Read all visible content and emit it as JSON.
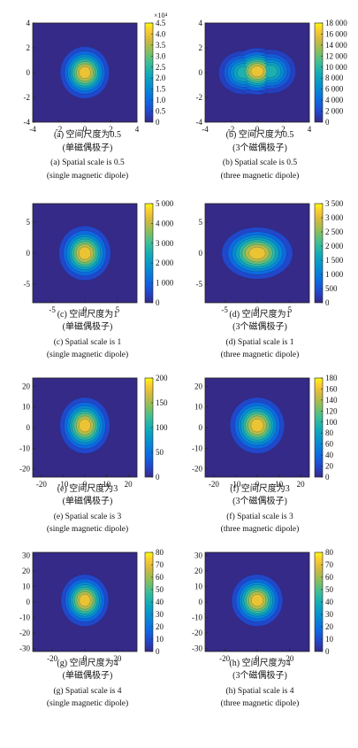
{
  "figure": {
    "panels": [
      {
        "id": "a",
        "caption_cn": "(a) 空间尺度为0.5",
        "caption_cn2": "(单磁偶极子)",
        "caption_en": "(a) Spatial scale is 0.5",
        "caption_en2": "(single magnetic dipole)",
        "chart_data": {
          "type": "heatmap",
          "colormap": "parula",
          "xlim": [
            -4,
            4
          ],
          "ylim": [
            -4,
            4
          ],
          "xticks": [
            "-4",
            "-2",
            "0",
            "2",
            "4"
          ],
          "yticks": [
            "4",
            "2",
            "0",
            "-2",
            "-4"
          ],
          "colorbar": {
            "min": 0,
            "max": 45000,
            "multiplier": "×10⁴",
            "ticks": [
              "4.5",
              "4.0",
              "3.5",
              "3.0",
              "2.5",
              "2.0",
              "1.5",
              "1.0",
              "0.5",
              "0"
            ]
          },
          "peak": {
            "x": 0,
            "y": 0,
            "value": 45000
          },
          "spread": {
            "sx": 0.9,
            "sy": 1.0
          },
          "contour_levels": 8
        }
      },
      {
        "id": "b",
        "caption_cn": "(b) 空间尺度为0.5",
        "caption_cn2": "(3个磁偶极子)",
        "caption_en": "(b) Spatial scale is 0.5",
        "caption_en2": "(three magnetic dipole)",
        "chart_data": {
          "type": "heatmap",
          "colormap": "parula",
          "xlim": [
            -4,
            4
          ],
          "ylim": [
            -4,
            4
          ],
          "xticks": [
            "-4",
            "-2",
            "0",
            "2",
            "4"
          ],
          "yticks": [
            "4",
            "2",
            "0",
            "-2",
            "-4"
          ],
          "colorbar": {
            "min": 0,
            "max": 18000,
            "multiplier": "",
            "ticks": [
              "18 000",
              "16 000",
              "14 000",
              "12 000",
              "10 000",
              "8 000",
              "6 000",
              "4 000",
              "2 000",
              "0"
            ]
          },
          "peaks": [
            {
              "x": -1.0,
              "y": 0,
              "value": 14000
            },
            {
              "x": 0.0,
              "y": 0.1,
              "value": 18000
            },
            {
              "x": 1.0,
              "y": 0.1,
              "value": 14000
            }
          ],
          "spread": {
            "sx": 1.0,
            "sy": 0.9
          },
          "contour_levels": 8
        }
      },
      {
        "id": "c",
        "caption_cn": "(c) 空间尺度为1",
        "caption_cn2": "(单磁偶极子)",
        "caption_en": "(c) Spatial scale is 1",
        "caption_en2": "(single magnetic dipole)",
        "chart_data": {
          "type": "heatmap",
          "colormap": "parula",
          "xlim": [
            -8,
            8
          ],
          "ylim": [
            -8,
            8
          ],
          "xticks": [
            "-5",
            "0",
            "5"
          ],
          "yticks": [
            "5",
            "0",
            "-5"
          ],
          "colorbar": {
            "min": 0,
            "max": 5500,
            "multiplier": "",
            "ticks": [
              "5 000",
              "4 000",
              "3 000",
              "2 000",
              "1 000",
              "0"
            ]
          },
          "peak": {
            "x": 0,
            "y": 0,
            "value": 5500
          },
          "spread": {
            "sx": 1.9,
            "sy": 2.1
          },
          "contour_levels": 8
        }
      },
      {
        "id": "d",
        "caption_cn": "(d) 空间尺度为1",
        "caption_cn2": "(3个磁偶极子)",
        "caption_en": "(d) Spatial scale is 1",
        "caption_en2": "(three magnetic dipole)",
        "chart_data": {
          "type": "heatmap",
          "colormap": "parula",
          "xlim": [
            -8,
            8
          ],
          "ylim": [
            -8,
            8
          ],
          "xticks": [
            "-5",
            "0",
            "5"
          ],
          "yticks": [
            "5",
            "0",
            "-5"
          ],
          "colorbar": {
            "min": 0,
            "max": 3500,
            "multiplier": "",
            "ticks": [
              "3 500",
              "3 000",
              "2 500",
              "2 000",
              "1 500",
              "1 000",
              "500",
              "0"
            ]
          },
          "peak": {
            "x": 0,
            "y": 0,
            "value": 3500
          },
          "spread": {
            "sx": 2.6,
            "sy": 2.0
          },
          "contour_levels": 8
        }
      },
      {
        "id": "e",
        "caption_cn": "(e) 空间尺度为3",
        "caption_cn2": "(单磁偶极子)",
        "caption_en": "(e) Spatial scale is 3",
        "caption_en2": "(single magnetic dipole)",
        "chart_data": {
          "type": "heatmap",
          "colormap": "parula",
          "xlim": [
            -24,
            24
          ],
          "ylim": [
            -24,
            24
          ],
          "xticks": [
            "-20",
            "-10",
            "0",
            "10",
            "20"
          ],
          "yticks": [
            "20",
            "10",
            "0",
            "-10",
            "-20"
          ],
          "colorbar": {
            "min": 0,
            "max": 200,
            "multiplier": "",
            "ticks": [
              "200",
              "150",
              "100",
              "50",
              "0"
            ]
          },
          "peak": {
            "x": 0,
            "y": 1,
            "value": 200
          },
          "spread": {
            "sx": 5.5,
            "sy": 6.5
          },
          "contour_levels": 8
        }
      },
      {
        "id": "f",
        "caption_cn": "(f) 空间尺度为3",
        "caption_cn2": "(3个磁偶极子)",
        "caption_en": "(f) Spatial scale is 3",
        "caption_en2": "(three magnetic dipole)",
        "chart_data": {
          "type": "heatmap",
          "colormap": "parula",
          "xlim": [
            -24,
            24
          ],
          "ylim": [
            -24,
            24
          ],
          "xticks": [
            "-20",
            "-10",
            "0",
            "10",
            "20"
          ],
          "yticks": [
            "20",
            "10",
            "0",
            "-10",
            "-20"
          ],
          "colorbar": {
            "min": 0,
            "max": 180,
            "multiplier": "",
            "ticks": [
              "180",
              "160",
              "140",
              "120",
              "100",
              "80",
              "60",
              "40",
              "20",
              "0"
            ]
          },
          "peak": {
            "x": 0,
            "y": 1,
            "value": 180
          },
          "spread": {
            "sx": 6.0,
            "sy": 6.5
          },
          "contour_levels": 8
        }
      },
      {
        "id": "g",
        "caption_cn": "(g) 空间尺度为4",
        "caption_cn2": "(单磁偶极子)",
        "caption_en": "(g) Spatial scale is 4",
        "caption_en2": "(single magnetic dipole)",
        "chart_data": {
          "type": "heatmap",
          "colormap": "parula",
          "xlim": [
            -32,
            32
          ],
          "ylim": [
            -32,
            32
          ],
          "xticks": [
            "-20",
            "0",
            "20"
          ],
          "yticks": [
            "30",
            "20",
            "10",
            "0",
            "-10",
            "-20",
            "-30"
          ],
          "colorbar": {
            "min": 0,
            "max": 80,
            "multiplier": "",
            "ticks": [
              "80",
              "70",
              "60",
              "50",
              "40",
              "30",
              "20",
              "10",
              "0"
            ]
          },
          "peak": {
            "x": 0,
            "y": 1,
            "value": 80
          },
          "spread": {
            "sx": 7.0,
            "sy": 8.0
          },
          "contour_levels": 8
        }
      },
      {
        "id": "h",
        "caption_cn": "(h) 空间尺度为4",
        "caption_cn2": "(3个磁偶极子)",
        "caption_en": "(h) Spatial scale is 4",
        "caption_en2": "(three magnetic dipole)",
        "chart_data": {
          "type": "heatmap",
          "colormap": "parula",
          "xlim": [
            -32,
            32
          ],
          "ylim": [
            -32,
            32
          ],
          "xticks": [
            "-20",
            "0",
            "20"
          ],
          "yticks": [
            "30",
            "20",
            "10",
            "0",
            "-10",
            "-20",
            "-30"
          ],
          "colorbar": {
            "min": 0,
            "max": 80,
            "multiplier": "",
            "ticks": [
              "80",
              "70",
              "60",
              "50",
              "40",
              "30",
              "20",
              "10",
              "0"
            ]
          },
          "peak": {
            "x": 0,
            "y": 1,
            "value": 80
          },
          "spread": {
            "sx": 7.5,
            "sy": 8.0
          },
          "contour_levels": 8
        }
      }
    ]
  }
}
